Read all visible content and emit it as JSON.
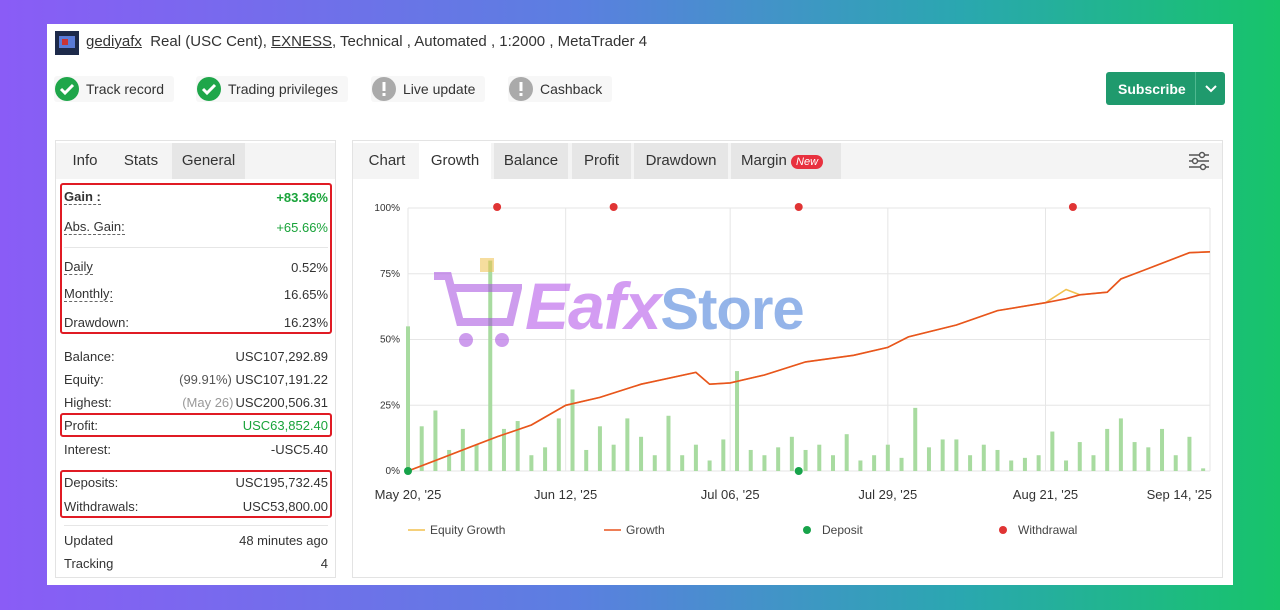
{
  "header": {
    "account_name": "gediyafx",
    "account_type": "Real (USC Cent),",
    "broker": "EXNESS",
    "details": ", Technical , Automated , 1:2000 , MetaTrader 4"
  },
  "badges": [
    "Track record",
    "Trading privileges",
    "Live update",
    "Cashback"
  ],
  "subscribe_button": "Subscribe",
  "left_tabs": [
    "Info",
    "Stats",
    "General"
  ],
  "stats": {
    "rows": [
      {
        "label": "Gain :",
        "value": "+83.36%"
      },
      {
        "label": "Abs. Gain:",
        "value": "+65.66%"
      },
      {
        "label": "Daily",
        "value": "0.52%"
      },
      {
        "label": "Monthly:",
        "value": "16.65%"
      },
      {
        "label": "Drawdown:",
        "value": "16.23%"
      },
      {
        "label": "Balance:",
        "value": "USC107,292.89"
      },
      {
        "label": "Equity:",
        "note": "(99.91%)",
        "value": "USC107,191.22"
      },
      {
        "label": "Highest:",
        "note": "(May 26)",
        "value": "USC200,506.31"
      },
      {
        "label": "Profit:",
        "value": "USC63,852.40"
      },
      {
        "label": "Interest:",
        "value": "-USC5.40"
      },
      {
        "label": "Deposits:",
        "value": "USC195,732.45"
      },
      {
        "label": "Withdrawals:",
        "value": "USC53,800.00"
      },
      {
        "label": "Updated",
        "value": "48 minutes ago"
      },
      {
        "label": "Tracking",
        "value": "4"
      }
    ]
  },
  "chart_tabs": {
    "label": "Chart",
    "tabs": [
      "Growth",
      "Balance",
      "Profit",
      "Drawdown",
      "Margin"
    ],
    "new_badge": "New"
  },
  "watermark": {
    "part1": "Eafx",
    "part2": "Store"
  },
  "chart_data": {
    "type": "line",
    "x": [
      "2025-05-20",
      "2025-05-25",
      "2025-05-29",
      "2025-06-02",
      "2025-06-07",
      "2025-06-12",
      "2025-06-17",
      "2025-06-23",
      "2025-07-01",
      "2025-07-03",
      "2025-07-06",
      "2025-07-11",
      "2025-07-17",
      "2025-07-24",
      "2025-07-29",
      "2025-08-01",
      "2025-08-08",
      "2025-08-14",
      "2025-08-21",
      "2025-08-24",
      "2025-08-26",
      "2025-08-30",
      "2025-09-01",
      "2025-09-06",
      "2025-09-11",
      "2025-09-14"
    ],
    "series": [
      {
        "name": "Equity Growth",
        "color": "#f2c14e",
        "values": [
          0,
          5,
          9,
          13,
          17.5,
          25,
          28,
          33,
          37.5,
          33,
          33.5,
          36.5,
          41.5,
          44,
          47,
          51,
          55.5,
          61,
          64,
          69,
          67,
          68,
          73,
          78,
          83,
          83.36
        ]
      },
      {
        "name": "Growth",
        "color": "#e8531f",
        "values": [
          0,
          5,
          9,
          13,
          17.5,
          25,
          28,
          33,
          37.5,
          33,
          33.5,
          36.5,
          41.5,
          44,
          47,
          51,
          55.5,
          61,
          64,
          65.5,
          67,
          68,
          73,
          78,
          83,
          83.36
        ]
      }
    ],
    "bars": {
      "color": "#a8dba0",
      "x": [
        "2025-05-20",
        "2025-05-22",
        "2025-05-24",
        "2025-05-26",
        "2025-05-28",
        "2025-05-30",
        "2025-06-01",
        "2025-06-03",
        "2025-06-05",
        "2025-06-07",
        "2025-06-09",
        "2025-06-11",
        "2025-06-13",
        "2025-06-15",
        "2025-06-17",
        "2025-06-19",
        "2025-06-21",
        "2025-06-23",
        "2025-06-25",
        "2025-06-27",
        "2025-06-29",
        "2025-07-01",
        "2025-07-03",
        "2025-07-05",
        "2025-07-07",
        "2025-07-09",
        "2025-07-11",
        "2025-07-13",
        "2025-07-15",
        "2025-07-17",
        "2025-07-19",
        "2025-07-21",
        "2025-07-23",
        "2025-07-25",
        "2025-07-27",
        "2025-07-29",
        "2025-07-31",
        "2025-08-02",
        "2025-08-04",
        "2025-08-06",
        "2025-08-08",
        "2025-08-10",
        "2025-08-12",
        "2025-08-14",
        "2025-08-16",
        "2025-08-18",
        "2025-08-20",
        "2025-08-22",
        "2025-08-24",
        "2025-08-26",
        "2025-08-28",
        "2025-08-30",
        "2025-09-01",
        "2025-09-03",
        "2025-09-05",
        "2025-09-07",
        "2025-09-09",
        "2025-09-11",
        "2025-09-13"
      ],
      "values": [
        55,
        17,
        23,
        8,
        16,
        10,
        80,
        16,
        19,
        6,
        9,
        20,
        31,
        8,
        17,
        10,
        20,
        13,
        6,
        21,
        6,
        10,
        4,
        12,
        38,
        8,
        6,
        9,
        13,
        8,
        10,
        6,
        14,
        4,
        6,
        10,
        5,
        24,
        9,
        12,
        12,
        6,
        10,
        8,
        4,
        5,
        6,
        15,
        4,
        11,
        6,
        16,
        20,
        11,
        9,
        16,
        6,
        13,
        1
      ]
    },
    "deposits": {
      "name": "Deposit",
      "color": "#17a34a",
      "x": [
        "2025-05-20",
        "2025-07-16"
      ]
    },
    "withdrawals": {
      "name": "Withdrawal",
      "color": "#e03434",
      "x": [
        "2025-06-02",
        "2025-06-19",
        "2025-07-16",
        "2025-08-25"
      ]
    },
    "xlim": [
      "2025-05-20",
      "2025-09-14"
    ],
    "xticks": [
      {
        "value": "2025-05-20",
        "label": "May 20, '25"
      },
      {
        "value": "2025-06-12",
        "label": "Jun 12, '25"
      },
      {
        "value": "2025-07-06",
        "label": "Jul 06, '25"
      },
      {
        "value": "2025-07-29",
        "label": "Jul 29, '25"
      },
      {
        "value": "2025-08-21",
        "label": "Aug 21, '25"
      },
      {
        "value": "2025-09-14",
        "label": "Sep 14, '25"
      }
    ],
    "ylim": [
      0,
      100
    ],
    "yticks": [
      {
        "value": 0,
        "label": "0%"
      },
      {
        "value": 25,
        "label": "25%"
      },
      {
        "value": 50,
        "label": "50%"
      },
      {
        "value": 75,
        "label": "75%"
      },
      {
        "value": 100,
        "label": "100%"
      }
    ],
    "grid": true
  }
}
